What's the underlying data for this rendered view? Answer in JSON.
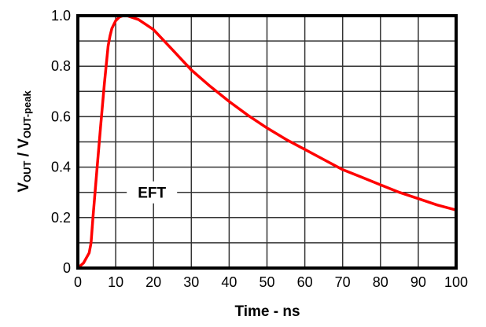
{
  "chart_data": {
    "type": "line",
    "title": "",
    "xlabel": "Time - ns",
    "ylabel": "VOUT / VOUT-peak",
    "ylabel_parts": {
      "v1": "V",
      "sub1": "OUT",
      "sep": " / ",
      "v2": "V",
      "sub2": "OUT-peak"
    },
    "xlim": [
      0,
      100
    ],
    "ylim": [
      0,
      1.0
    ],
    "grid": true,
    "x_ticks": [
      0,
      10,
      20,
      30,
      40,
      50,
      60,
      70,
      80,
      90,
      100
    ],
    "x_tick_labels": [
      "0",
      "10",
      "20",
      "30",
      "40",
      "50",
      "60",
      "70",
      "80",
      "90",
      "100"
    ],
    "y_ticks": [
      0,
      0.2,
      0.4,
      0.6,
      0.8,
      1.0
    ],
    "y_tick_labels": [
      "0",
      "0.2",
      "0.4",
      "0.6",
      "0.8",
      "1.0"
    ],
    "y_minor_grid_step": 0.1,
    "annotations": [
      {
        "text": "EFT",
        "x": 20,
        "y": 0.3
      }
    ],
    "series": [
      {
        "name": "EFT",
        "color": "#ff0000",
        "x": [
          0,
          1.5,
          3,
          3.5,
          4,
          5,
          6,
          7,
          8,
          8.5,
          9,
          10,
          11,
          12,
          13,
          14,
          16,
          18,
          20,
          25,
          30,
          35,
          40,
          45,
          50,
          55,
          60,
          65,
          70,
          75,
          80,
          85,
          90,
          95,
          100
        ],
        "y": [
          0,
          0.02,
          0.06,
          0.1,
          0.2,
          0.38,
          0.56,
          0.73,
          0.88,
          0.92,
          0.95,
          0.98,
          0.995,
          1.0,
          1.0,
          0.995,
          0.985,
          0.965,
          0.945,
          0.865,
          0.785,
          0.72,
          0.66,
          0.605,
          0.555,
          0.51,
          0.47,
          0.43,
          0.39,
          0.36,
          0.33,
          0.3,
          0.275,
          0.25,
          0.23
        ]
      }
    ]
  }
}
